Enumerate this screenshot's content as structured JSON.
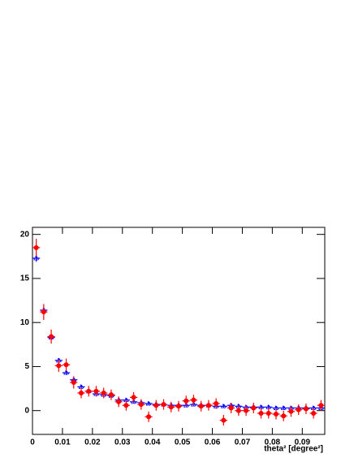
{
  "chart_data": {
    "type": "errorbar",
    "x_label": "theta² [degree²]",
    "bin_width": 0.0025,
    "x": [
      0.00125,
      0.00375,
      0.00625,
      0.00875,
      0.01125,
      0.01375,
      0.01625,
      0.01875,
      0.02125,
      0.02375,
      0.02625,
      0.02875,
      0.03125,
      0.03375,
      0.03625,
      0.03875,
      0.04125,
      0.04375,
      0.04625,
      0.04875,
      0.05125,
      0.05375,
      0.05625,
      0.05875,
      0.06125,
      0.06375,
      0.06625,
      0.06875,
      0.07125,
      0.07375,
      0.07625,
      0.07875,
      0.08125,
      0.08375,
      0.08625,
      0.08875,
      0.09125,
      0.09375,
      0.09625
    ],
    "series": [
      {
        "color": "#0000ff",
        "marker": "triangle",
        "values": [
          17.3,
          11.4,
          8.3,
          5.7,
          4.3,
          3.5,
          2.7,
          2.2,
          1.9,
          1.8,
          1.7,
          1.2,
          1.2,
          1.0,
          0.9,
          0.8,
          0.7,
          0.7,
          0.6,
          0.6,
          0.6,
          0.7,
          0.6,
          0.6,
          0.5,
          0.5,
          0.6,
          0.5,
          0.4,
          0.4,
          0.4,
          0.4,
          0.3,
          0.3,
          0.3,
          0.3,
          0.3,
          0.3,
          0.3
        ],
        "errors": [
          0.4,
          0.3,
          0.3,
          0.25,
          0.25,
          0.2,
          0.2,
          0.2,
          0.2,
          0.2,
          0.2,
          0.2,
          0.2,
          0.2,
          0.2,
          0.2,
          0.2,
          0.2,
          0.2,
          0.2,
          0.2,
          0.2,
          0.2,
          0.2,
          0.2,
          0.2,
          0.2,
          0.2,
          0.2,
          0.2,
          0.2,
          0.2,
          0.2,
          0.2,
          0.2,
          0.2,
          0.2,
          0.2,
          0.2
        ]
      },
      {
        "color": "#ff0000",
        "marker": "circle",
        "values": [
          18.5,
          11.2,
          8.4,
          5.1,
          5.2,
          3.2,
          2.0,
          2.2,
          2.2,
          2.0,
          1.8,
          1.0,
          0.6,
          1.5,
          0.7,
          -0.7,
          0.6,
          0.7,
          0.4,
          0.5,
          1.1,
          1.2,
          0.5,
          0.6,
          0.8,
          -1.1,
          0.3,
          0.0,
          0.0,
          0.3,
          -0.3,
          -0.3,
          -0.4,
          -0.6,
          -0.1,
          0.1,
          0.2,
          -0.3,
          0.6
        ],
        "errors": [
          1.0,
          0.9,
          0.8,
          0.7,
          0.7,
          0.7,
          0.6,
          0.6,
          0.6,
          0.6,
          0.6,
          0.6,
          0.6,
          0.6,
          0.6,
          0.6,
          0.6,
          0.6,
          0.6,
          0.6,
          0.6,
          0.6,
          0.6,
          0.6,
          0.6,
          0.6,
          0.6,
          0.6,
          0.6,
          0.6,
          0.6,
          0.6,
          0.6,
          0.6,
          0.6,
          0.6,
          0.6,
          0.6,
          0.6
        ]
      }
    ],
    "xlim": [
      0,
      0.0975
    ],
    "ylim": [
      -2.7,
      20.8
    ],
    "xticks": [
      0,
      0.01,
      0.02,
      0.03,
      0.04,
      0.05,
      0.06,
      0.07,
      0.08,
      0.09
    ],
    "yticks": [
      0,
      5,
      10,
      15,
      20
    ]
  }
}
